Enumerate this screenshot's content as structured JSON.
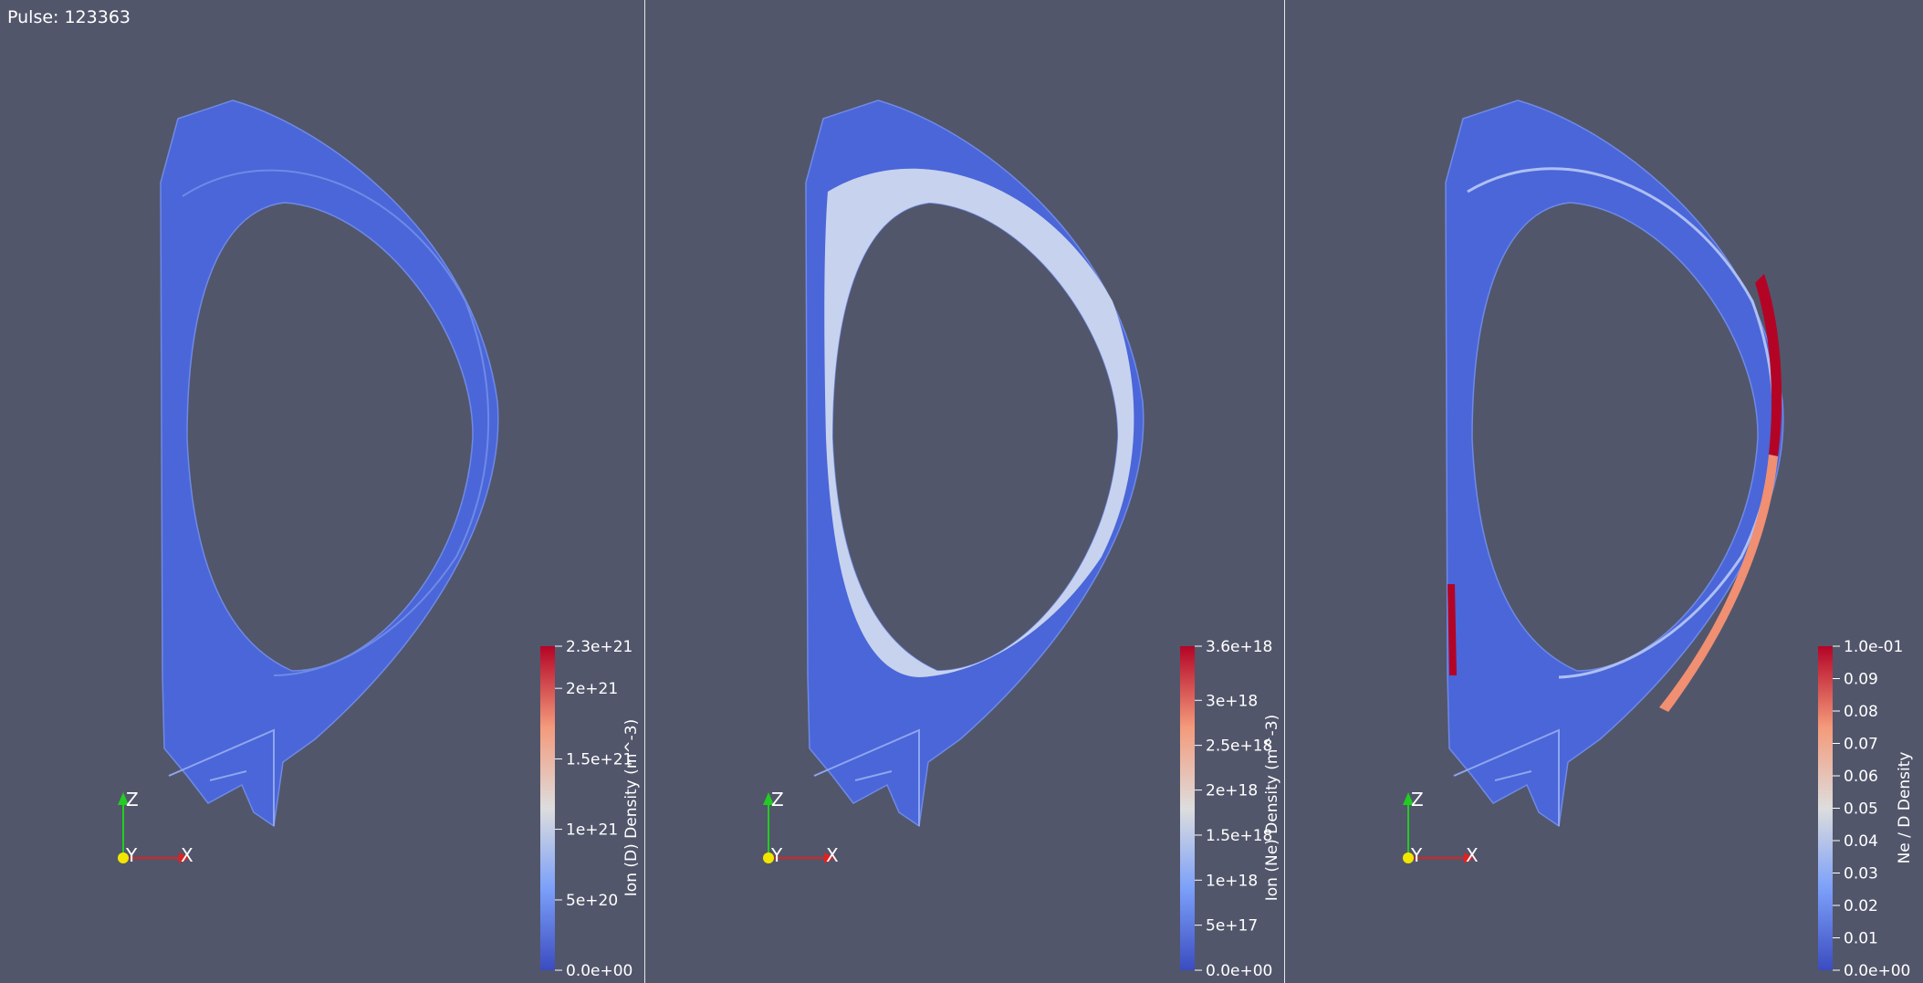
{
  "pulse_label": "Pulse: 123363",
  "panels": [
    {
      "id": "d",
      "colorbar": {
        "title": "Ion (D) Density (m^-3)",
        "ticks": [
          "2.3e+21",
          "2e+21",
          "1.5e+21",
          "1e+21",
          "5e+20",
          "0.0e+00"
        ],
        "tick_fracs": [
          1.0,
          0.87,
          0.652,
          0.435,
          0.217,
          0.0
        ]
      },
      "axes": {
        "z": "Z",
        "y": "Y",
        "x": "X"
      }
    },
    {
      "id": "ne",
      "colorbar": {
        "title": "Ion (Ne) Density (m^-3)",
        "ticks": [
          "3.6e+18",
          "3e+18",
          "2.5e+18",
          "2e+18",
          "1.5e+18",
          "1e+18",
          "5e+17",
          "0.0e+00"
        ],
        "tick_fracs": [
          1.0,
          0.833,
          0.694,
          0.556,
          0.417,
          0.278,
          0.139,
          0.0
        ]
      },
      "axes": {
        "z": "Z",
        "y": "Y",
        "x": "X"
      }
    },
    {
      "id": "ratio",
      "colorbar": {
        "title": "Ne / D Density",
        "ticks": [
          "1.0e-01",
          "0.09",
          "0.08",
          "0.07",
          "0.06",
          "0.05",
          "0.04",
          "0.03",
          "0.02",
          "0.01",
          "0.0e+00"
        ],
        "tick_fracs": [
          1.0,
          0.9,
          0.8,
          0.7,
          0.6,
          0.5,
          0.4,
          0.3,
          0.2,
          0.1,
          0.0
        ]
      },
      "axes": {
        "z": "Z",
        "y": "Y",
        "x": "X"
      }
    }
  ],
  "colors": {
    "background": "#52566b",
    "low": "#3b4cc0",
    "mid": "#dddddd",
    "high": "#b40426"
  }
}
